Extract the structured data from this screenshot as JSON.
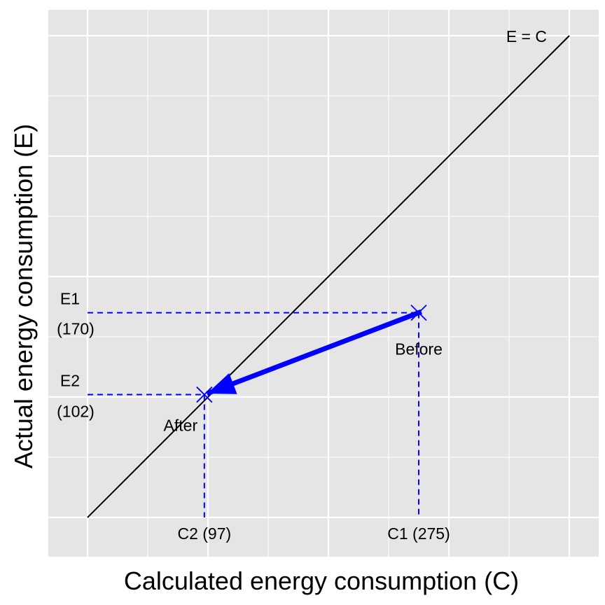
{
  "chart_data": {
    "type": "scatter",
    "title": "",
    "xlabel": "Calculated energy consumption (C)",
    "ylabel": "Actual energy consumption (E)",
    "xlim": [
      0,
      400
    ],
    "ylim": [
      0,
      400
    ],
    "grid": true,
    "points": [
      {
        "label": "Before",
        "x": 275,
        "y": 170,
        "x_label": "C1 (275)",
        "y_label_top": "E1",
        "y_label_bottom": "(170)"
      },
      {
        "label": "After",
        "x": 97,
        "y": 102,
        "x_label": "C2 (97)",
        "y_label_top": "E2",
        "y_label_bottom": "(102)"
      }
    ],
    "reference_line": {
      "label": "E = C",
      "from": [
        0,
        0
      ],
      "to": [
        400,
        400
      ]
    },
    "colors": {
      "panel": "#e5e5e5",
      "grid": "#ffffff",
      "marker": "#0000ff",
      "arrow": "#0000ff",
      "line": "#000000"
    }
  }
}
